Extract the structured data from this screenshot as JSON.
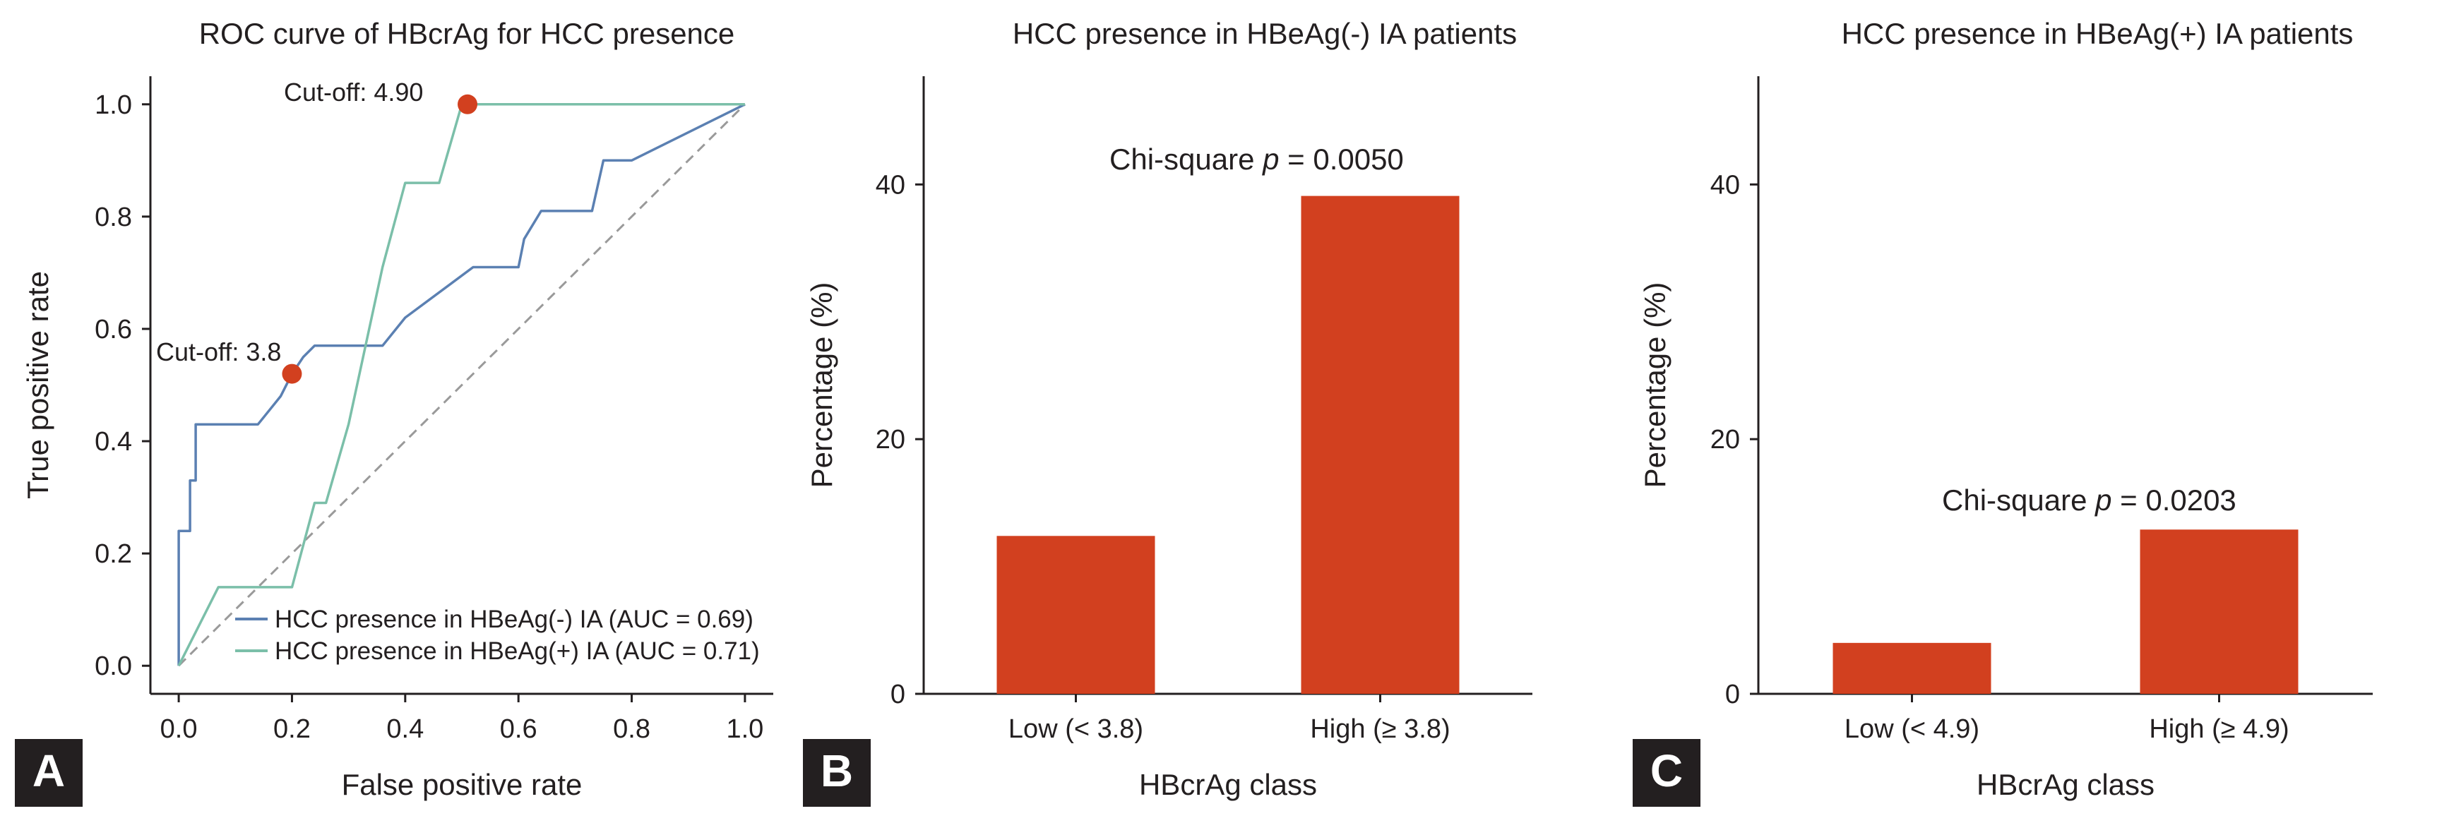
{
  "colors": {
    "roc_neg": "#5b80b2",
    "roc_pos": "#7bbfa9",
    "bar": "#d2401f",
    "marker": "#d2401f",
    "diagonal": "#9a9a9a",
    "axis": "#231f20",
    "panel_badge": "#231f20"
  },
  "panels": {
    "A": {
      "letter": "A"
    },
    "B": {
      "letter": "B"
    },
    "C": {
      "letter": "C"
    }
  },
  "chart_data": [
    {
      "id": "A",
      "type": "line",
      "title": "ROC curve of HBcrAg for HCC presence",
      "xlabel": "False positive rate",
      "ylabel": "True positive rate",
      "xlim": [
        -0.05,
        1.05
      ],
      "ylim": [
        -0.05,
        1.05
      ],
      "xticks": [
        0.0,
        0.2,
        0.4,
        0.6,
        0.8,
        1.0
      ],
      "yticks": [
        0.0,
        0.2,
        0.4,
        0.6,
        0.8,
        1.0
      ],
      "tick_labels": [
        "0.0",
        "0.2",
        "0.4",
        "0.6",
        "0.8",
        "1.0"
      ],
      "legend_position": "bottom-right",
      "diagonal": [
        [
          0,
          0
        ],
        [
          1,
          1
        ]
      ],
      "series": [
        {
          "name": "HCC presence in HBeAg(-) IA (AUC = 0.69)",
          "color_key": "roc_neg",
          "x": [
            0.0,
            0.0,
            0.02,
            0.02,
            0.03,
            0.03,
            0.14,
            0.18,
            0.2,
            0.22,
            0.24,
            0.36,
            0.4,
            0.52,
            0.6,
            0.61,
            0.64,
            0.73,
            0.75,
            0.8,
            1.0
          ],
          "y": [
            0.0,
            0.24,
            0.24,
            0.33,
            0.33,
            0.43,
            0.43,
            0.48,
            0.52,
            0.55,
            0.57,
            0.57,
            0.62,
            0.71,
            0.71,
            0.76,
            0.81,
            0.81,
            0.9,
            0.9,
            1.0
          ]
        },
        {
          "name": "HCC presence in HBeAg(+) IA (AUC = 0.71)",
          "color_key": "roc_pos",
          "x": [
            0.0,
            0.07,
            0.2,
            0.24,
            0.26,
            0.3,
            0.36,
            0.4,
            0.46,
            0.5,
            0.51,
            1.0
          ],
          "y": [
            0.0,
            0.14,
            0.14,
            0.29,
            0.29,
            0.43,
            0.71,
            0.86,
            0.86,
            1.0,
            1.0,
            1.0
          ]
        }
      ],
      "markers": [
        {
          "x": 0.2,
          "y": 0.52,
          "label": "Cut-off: 3.8"
        },
        {
          "x": 0.51,
          "y": 1.0,
          "label": "Cut-off: 4.90"
        }
      ]
    },
    {
      "id": "B",
      "type": "bar",
      "title": "HCC presence in HBeAg(-) IA patients",
      "xlabel": "HBcrAg class",
      "ylabel": "Percentage (%)",
      "categories": [
        "Low (< 3.8)",
        "High (≥ 3.8)"
      ],
      "values": [
        12.4,
        39.1
      ],
      "ylim": [
        0,
        48.5
      ],
      "yticks": [
        0,
        20,
        40
      ],
      "annotation": {
        "prefix": "Chi-square ",
        "p_symbol": "p",
        "suffix": " = 0.0050"
      }
    },
    {
      "id": "C",
      "type": "bar",
      "title": "HCC presence in HBeAg(+) IA patients",
      "xlabel": "HBcrAg class",
      "ylabel": "Percentage (%)",
      "categories": [
        "Low (< 4.9)",
        "High (≥ 4.9)"
      ],
      "values": [
        4.0,
        12.9
      ],
      "ylim": [
        0,
        48.5
      ],
      "yticks": [
        0,
        20,
        40
      ],
      "annotation": {
        "prefix": "Chi-square ",
        "p_symbol": "p",
        "suffix": " = 0.0203"
      }
    }
  ]
}
